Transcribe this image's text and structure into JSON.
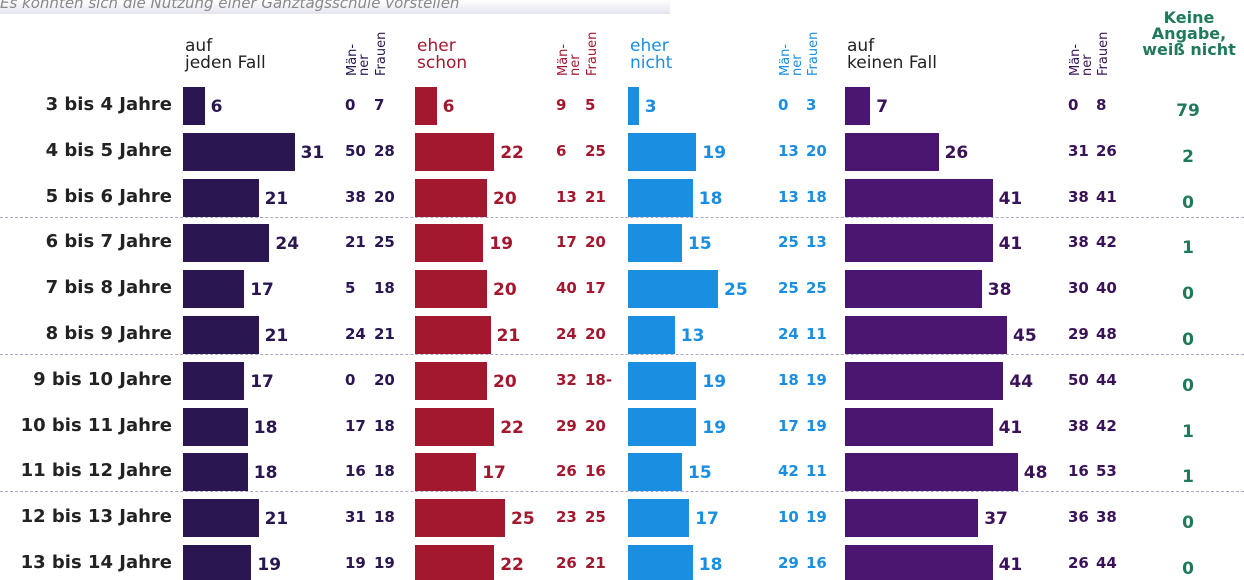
{
  "subtitle": "Es könnten sich die Nutzung einer Ganztagsschule vorstellen",
  "categories": [
    "3 bis 4 Jahre",
    "4 bis 5 Jahre",
    "5 bis 6 Jahre",
    "6 bis 7 Jahre",
    "7 bis 8 Jahre",
    "8 bis 9 Jahre",
    "9 bis 10 Jahre",
    "10 bis 11 Jahre",
    "11 bis 12 Jahre",
    "12 bis 13 Jahre",
    "13 bis 14 Jahre"
  ],
  "men_label": "Män-\nner",
  "women_label": "Frauen",
  "chart_data": [
    {
      "type": "bar",
      "title": "auf\njeden Fall",
      "color": "#2a1650",
      "text_color": "#2a1650",
      "values": [
        6,
        31,
        21,
        24,
        17,
        21,
        17,
        18,
        18,
        21,
        19
      ],
      "men": [
        0,
        50,
        38,
        21,
        5,
        24,
        0,
        17,
        16,
        31,
        19
      ],
      "women": [
        7,
        28,
        20,
        25,
        18,
        21,
        20,
        18,
        18,
        18,
        19
      ]
    },
    {
      "type": "bar",
      "title": "eher\nschon",
      "color": "#a3182e",
      "text_color": "#a3182e",
      "values": [
        6,
        22,
        20,
        19,
        20,
        21,
        20,
        22,
        17,
        25,
        22
      ],
      "men": [
        9,
        6,
        13,
        17,
        40,
        24,
        32,
        29,
        26,
        23,
        26
      ],
      "women": [
        5,
        25,
        21,
        20,
        17,
        20,
        18,
        20,
        16,
        25,
        21
      ],
      "women_value_labels": [
        "5",
        "25",
        "21",
        "20",
        "17",
        "20",
        "18-",
        "20",
        "16",
        "25",
        "21"
      ]
    },
    {
      "type": "bar",
      "title": "eher\nnicht",
      "color": "#1a8ee0",
      "text_color": "#1a8ee0",
      "values": [
        3,
        19,
        18,
        15,
        25,
        13,
        19,
        19,
        15,
        17,
        18
      ],
      "men": [
        0,
        13,
        13,
        25,
        25,
        24,
        18,
        17,
        42,
        10,
        29
      ],
      "women": [
        3,
        20,
        18,
        13,
        25,
        11,
        19,
        19,
        11,
        19,
        16
      ]
    },
    {
      "type": "bar",
      "title": "auf\nkeinen Fall",
      "color": "#4a1670",
      "text_color": "#3a1258",
      "values": [
        7,
        26,
        41,
        41,
        38,
        45,
        44,
        41,
        48,
        37,
        41
      ],
      "men": [
        0,
        31,
        38,
        38,
        30,
        29,
        50,
        38,
        16,
        36,
        26
      ],
      "women": [
        8,
        26,
        41,
        42,
        40,
        48,
        44,
        42,
        53,
        38,
        44
      ]
    }
  ],
  "no_answer": {
    "title": "Keine\nAngabe,\nweiß nicht",
    "color": "#1f7a5a",
    "values": [
      79,
      2,
      0,
      1,
      0,
      0,
      0,
      1,
      1,
      0,
      0
    ]
  }
}
